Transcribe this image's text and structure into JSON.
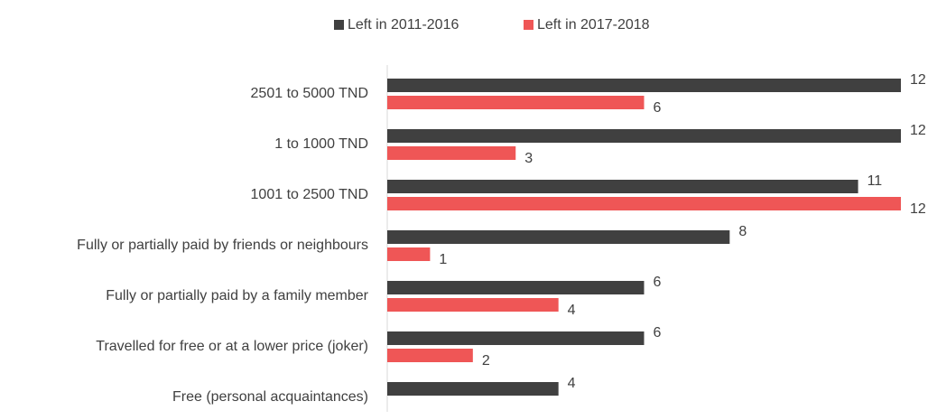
{
  "chart_data": {
    "type": "bar",
    "orientation": "horizontal",
    "categories": [
      "2501 to 5000 TND",
      "1 to 1000 TND",
      "1001 to 2500 TND",
      "Fully or partially paid by friends or neighbours",
      "Fully or partially paid by a family member",
      "Travelled for free or at a lower price (joker)",
      "Free (personal acquaintances)"
    ],
    "series": [
      {
        "name": "Left in 2011-2016",
        "color": "#404040",
        "values": [
          12,
          12,
          11,
          8,
          6,
          6,
          4
        ]
      },
      {
        "name": "Left in 2017-2018",
        "color": "#ef5656",
        "values": [
          6,
          3,
          12,
          1,
          4,
          2,
          null
        ]
      }
    ],
    "xlim": [
      0,
      12
    ],
    "legend": "top"
  }
}
